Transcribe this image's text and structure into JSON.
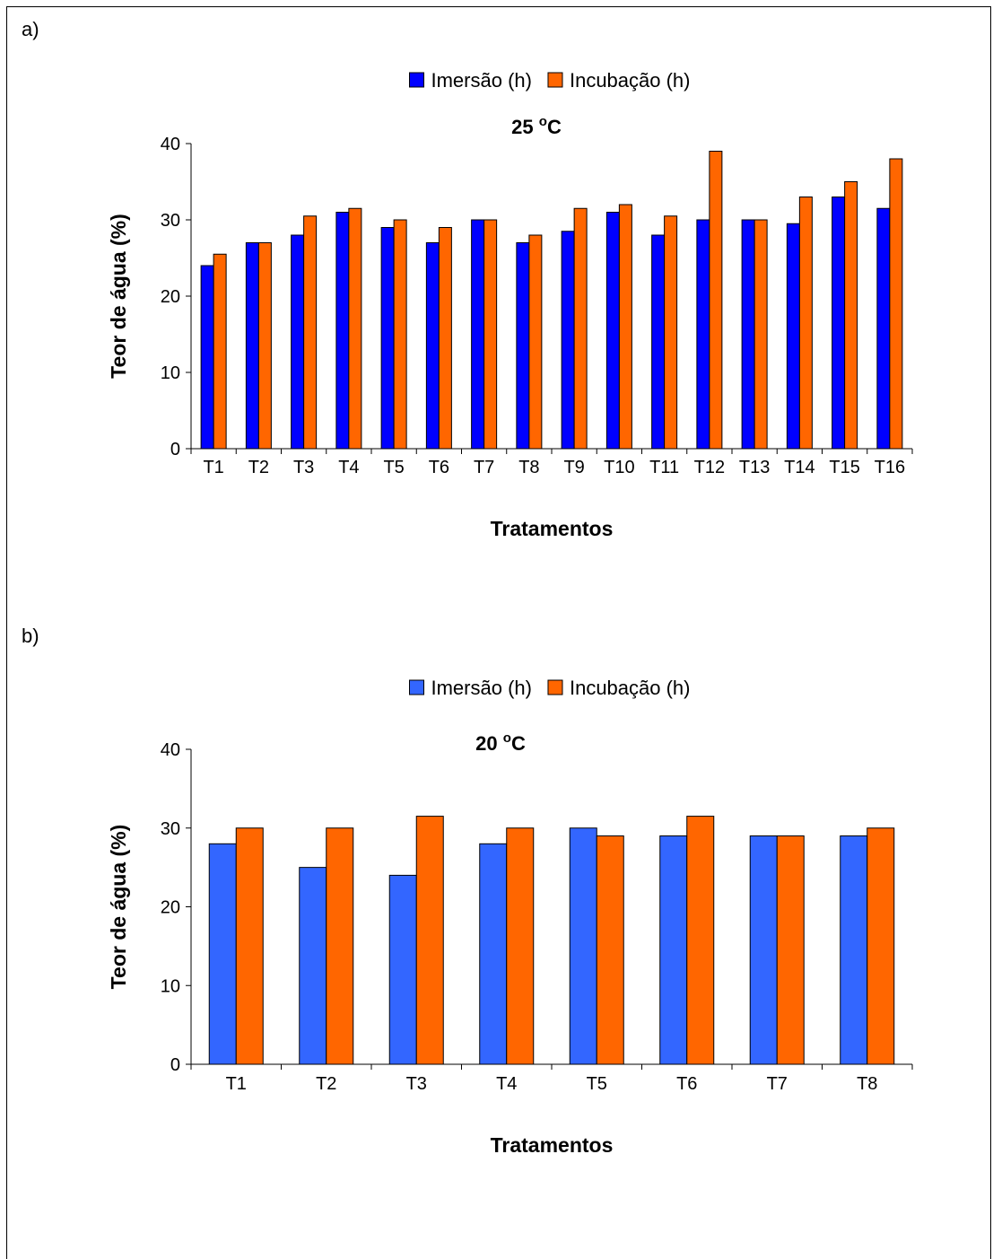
{
  "chart_data": [
    {
      "type": "bar",
      "panel_label": "a)",
      "title": "25 °C",
      "title_main": "25 ",
      "title_sup": "o",
      "title_unit": "C",
      "xlabel": "Tratamentos",
      "ylabel": "Teor de água (%)",
      "ylim": [
        0,
        40
      ],
      "yticks": [
        "0",
        "10",
        "20",
        "30",
        "40"
      ],
      "legend_position": "top-center",
      "categories": [
        "T1",
        "T2",
        "T3",
        "T4",
        "T5",
        "T6",
        "T7",
        "T8",
        "T9",
        "T10",
        "T11",
        "T12",
        "T13",
        "T14",
        "T15",
        "T16"
      ],
      "series": [
        {
          "name": "Imersão (h)",
          "color": "#0000ff",
          "values": [
            24,
            27,
            28,
            31,
            29,
            27,
            30,
            27,
            28.5,
            31,
            28,
            30,
            30,
            29.5,
            33,
            31.5
          ]
        },
        {
          "name": "Incubação (h)",
          "color": "#ff6600",
          "values": [
            25.5,
            27,
            30.5,
            31.5,
            30,
            29,
            30,
            28,
            31.5,
            32,
            30.5,
            39,
            30,
            33,
            35,
            38
          ]
        }
      ]
    },
    {
      "type": "bar",
      "panel_label": "b)",
      "title": "20 °C",
      "title_main": "20 ",
      "title_sup": "o",
      "title_unit": "C",
      "xlabel": "Tratamentos",
      "ylabel": "Teor de água (%)",
      "ylim": [
        0,
        40
      ],
      "yticks": [
        "0",
        "10",
        "20",
        "30",
        "40"
      ],
      "legend_position": "top-center",
      "categories": [
        "T1",
        "T2",
        "T3",
        "T4",
        "T5",
        "T6",
        "T7",
        "T8"
      ],
      "series": [
        {
          "name": "Imersão (h)",
          "color": "#3366ff",
          "values": [
            28,
            25,
            24,
            28,
            30,
            29,
            29,
            29
          ]
        },
        {
          "name": "Incubação (h)",
          "color": "#ff6600",
          "values": [
            30,
            30,
            31.5,
            30,
            29,
            31.5,
            29,
            30
          ]
        }
      ]
    }
  ]
}
